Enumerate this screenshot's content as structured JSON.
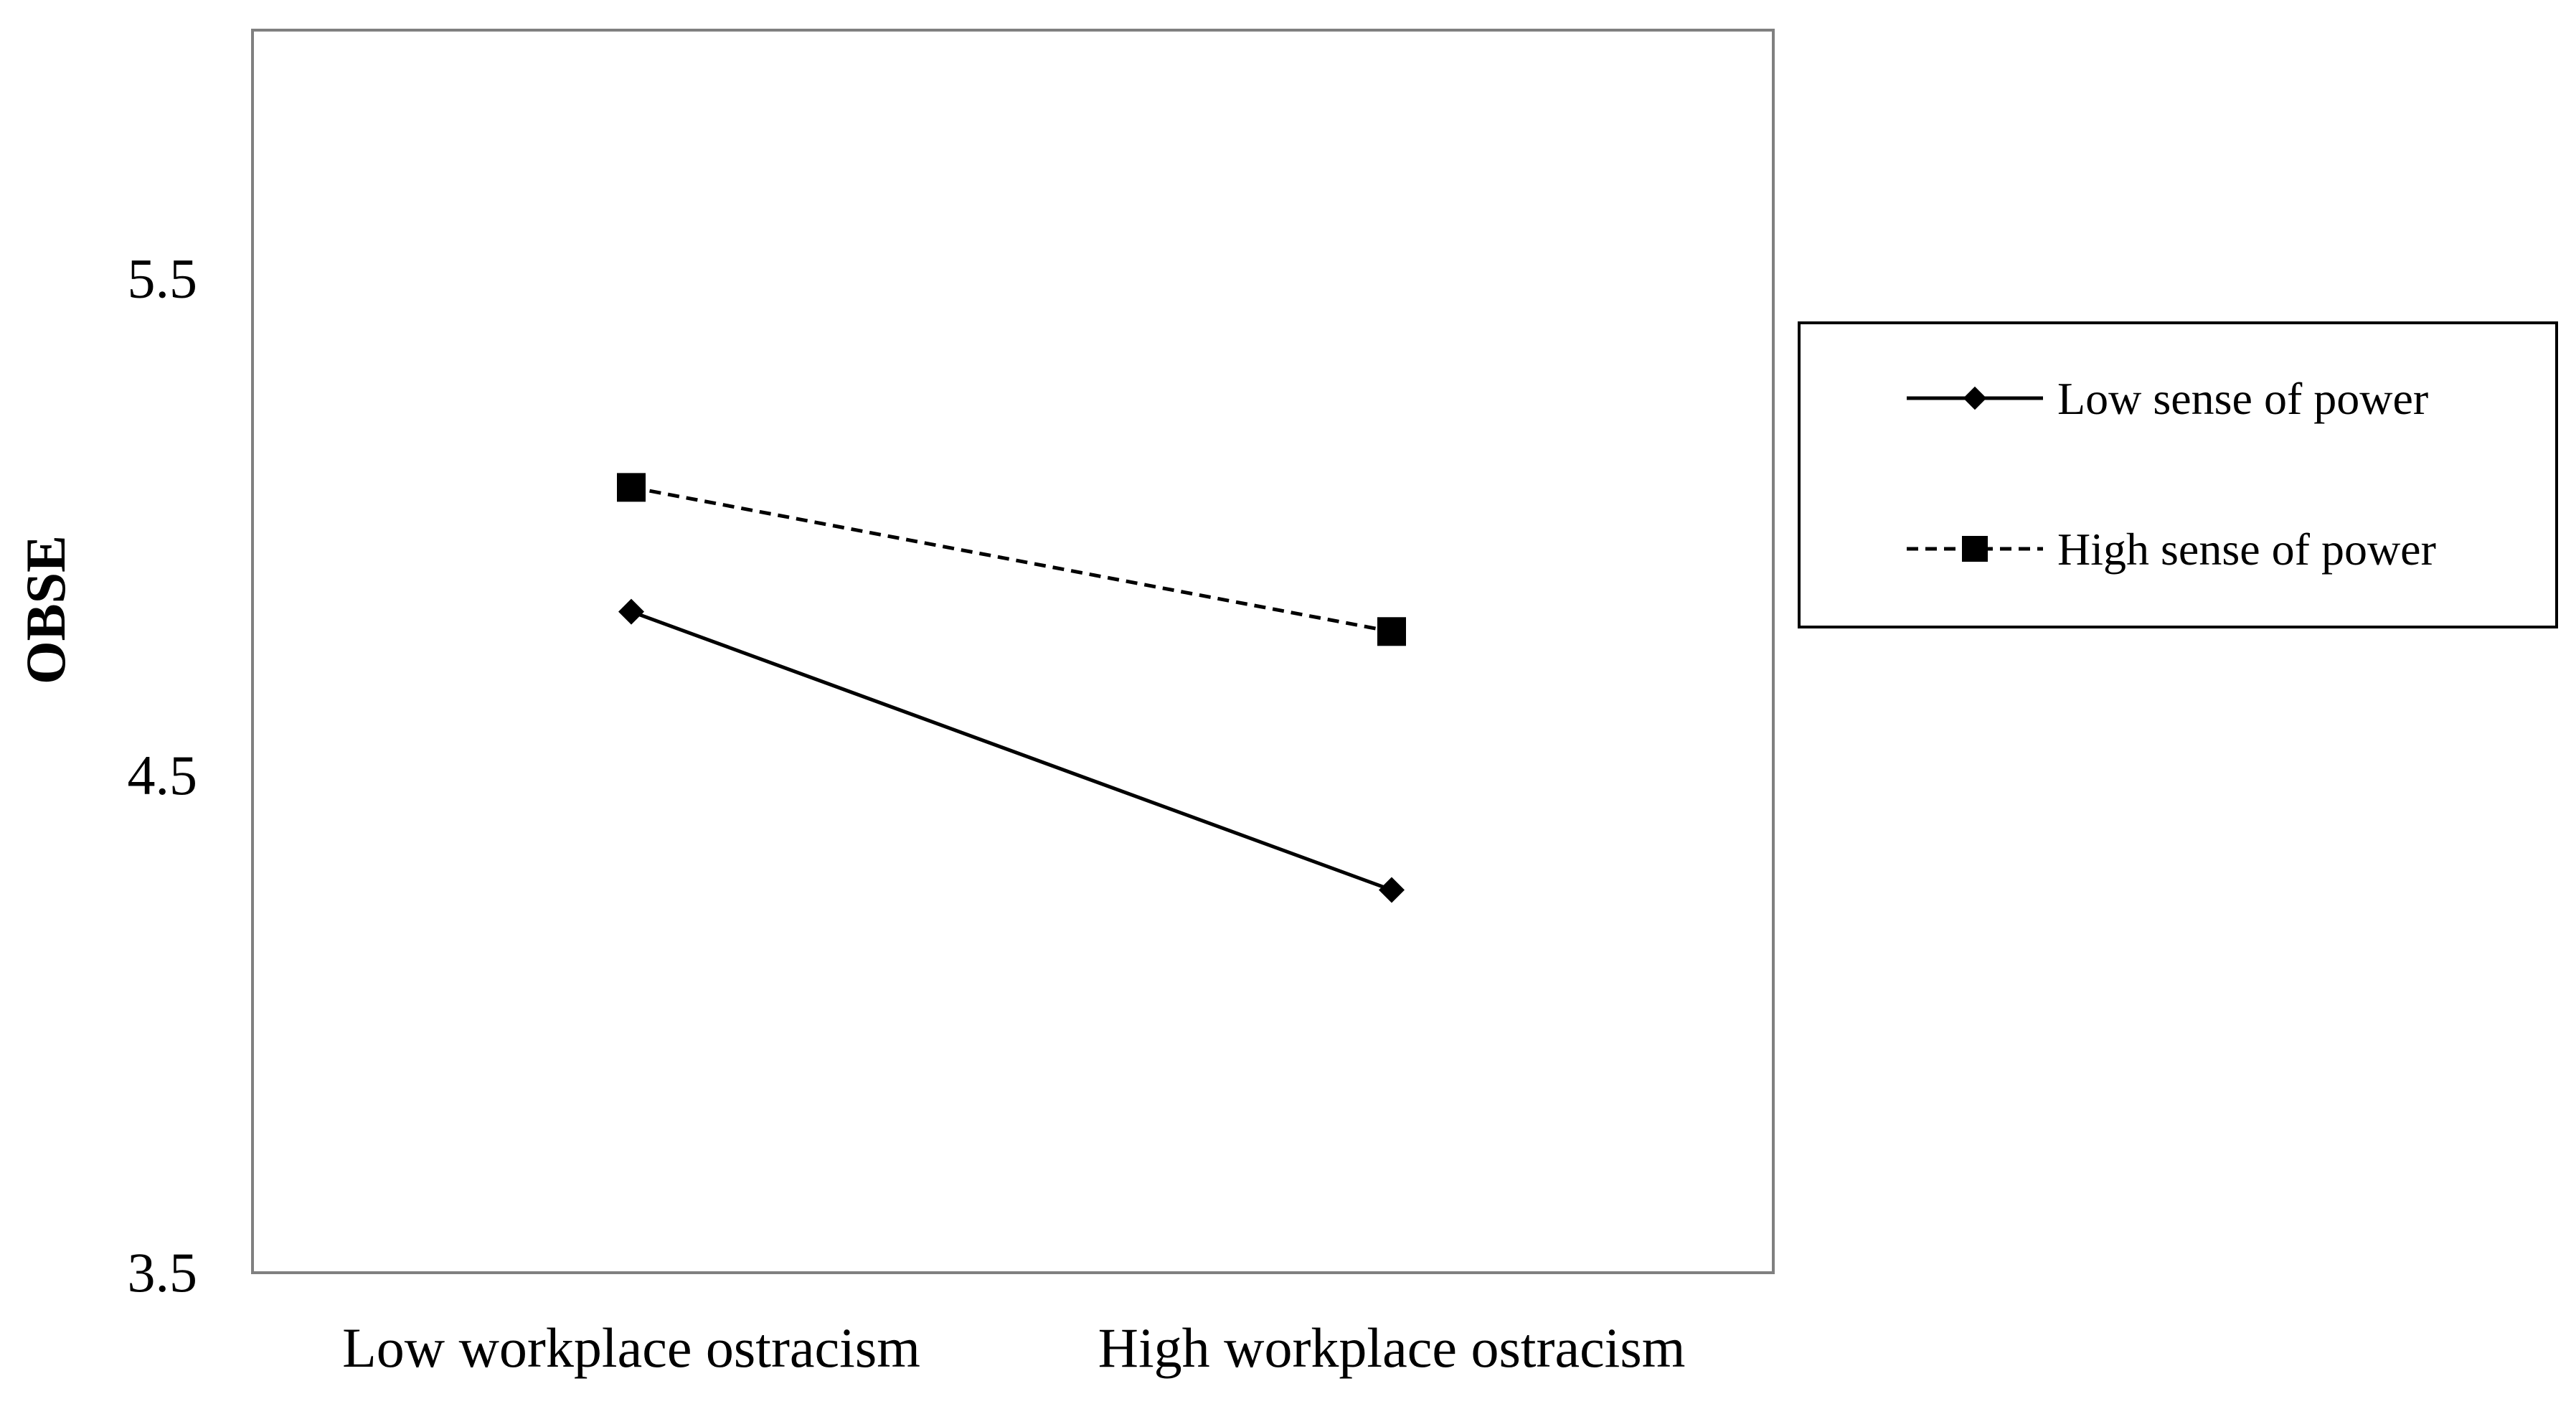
{
  "chart_data": {
    "type": "line",
    "title": "",
    "xlabel": "",
    "ylabel": "OBSE",
    "categories": [
      "Low workplace ostracism",
      "High workplace ostracism"
    ],
    "ylim": [
      3.5,
      6.0
    ],
    "yticks": [
      "3.5",
      "4.5",
      "5.5"
    ],
    "ytick_values": [
      3.5,
      4.5,
      5.5
    ],
    "grid": false,
    "legend_position": "right",
    "series": [
      {
        "name": "Low sense of power",
        "values": [
          4.83,
          4.27
        ],
        "marker": "diamond",
        "line_style": "solid",
        "color": "#000000"
      },
      {
        "name": "High sense of power",
        "values": [
          5.08,
          4.79
        ],
        "marker": "square",
        "line_style": "dashed",
        "color": "#000000"
      }
    ]
  }
}
